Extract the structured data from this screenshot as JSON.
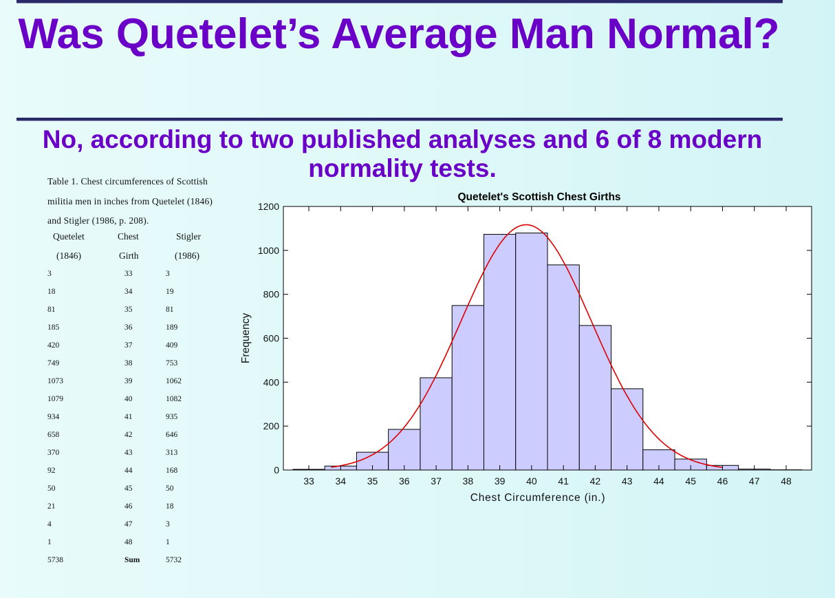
{
  "slide": {
    "title": "Was Quetelet’s Average Man Normal?",
    "subtitle": "No, according to two published analyses and 6 of 8 modern normality tests."
  },
  "table": {
    "caption": "Table 1. Chest circumferences of Scottish militia men in inches from Quetelet (1846) and Stigler (1986, p. 208).",
    "headers": [
      [
        "Quetelet",
        "Chest",
        "Stigler"
      ],
      [
        "(1846)",
        "Girth",
        "(1986)"
      ]
    ],
    "rows": [
      [
        "3",
        "33",
        "3"
      ],
      [
        "18",
        "34",
        "19"
      ],
      [
        "81",
        "35",
        "81"
      ],
      [
        "185",
        "36",
        "189"
      ],
      [
        "420",
        "37",
        "409"
      ],
      [
        "749",
        "38",
        "753"
      ],
      [
        "1073",
        "39",
        "1062"
      ],
      [
        "1079",
        "40",
        "1082"
      ],
      [
        "934",
        "41",
        "935"
      ],
      [
        "658",
        "42",
        "646"
      ],
      [
        "370",
        "43",
        "313"
      ],
      [
        "92",
        "44",
        "168"
      ],
      [
        "50",
        "45",
        "50"
      ],
      [
        "21",
        "46",
        "18"
      ],
      [
        "4",
        "47",
        "3"
      ],
      [
        "1",
        "48",
        "1"
      ],
      [
        "5738",
        "Sum",
        "5732"
      ]
    ]
  },
  "chart_data": {
    "type": "bar",
    "title": "Quetelet's Scottish Chest Girths",
    "xlabel": "Chest Circumference (in.)",
    "ylabel": "Frequency",
    "categories": [
      33,
      34,
      35,
      36,
      37,
      38,
      39,
      40,
      41,
      42,
      43,
      44,
      45,
      46,
      47,
      48
    ],
    "values": [
      3,
      18,
      81,
      185,
      420,
      749,
      1073,
      1079,
      934,
      658,
      370,
      92,
      50,
      21,
      4,
      1
    ],
    "xlim": [
      32.2,
      48.8
    ],
    "ylim": [
      0,
      1200
    ],
    "xticks": [
      33,
      34,
      35,
      36,
      37,
      38,
      39,
      40,
      41,
      42,
      43,
      44,
      45,
      46,
      47,
      48
    ],
    "yticks": [
      0,
      200,
      400,
      600,
      800,
      1000,
      1200
    ],
    "bar_color": "#ccccff",
    "fit_curve": {
      "type": "normal",
      "mean": 39.83,
      "sd": 2.05,
      "x_range": [
        33.7,
        46.0
      ],
      "color": "#dd0000"
    },
    "grid": false
  }
}
